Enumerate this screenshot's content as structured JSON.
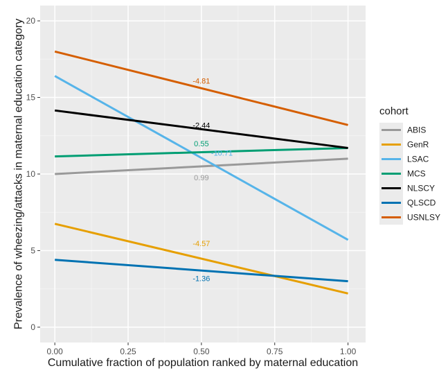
{
  "chart_data": {
    "type": "line",
    "xlabel": "Cumulative fraction of population ranked by maternal education",
    "ylabel": "Prevalence of wheezing/attacks in maternal education category",
    "xlim": [
      -0.05,
      1.06
    ],
    "ylim": [
      -1,
      21
    ],
    "x_ticks": [
      0,
      0.25,
      0.5,
      0.75,
      1
    ],
    "x_tick_labels": [
      "0.00",
      "0.25",
      "0.50",
      "0.75",
      "1.00"
    ],
    "y_ticks": [
      0,
      5,
      10,
      15,
      20
    ],
    "y_tick_labels": [
      "0",
      "5",
      "10",
      "15",
      "20"
    ],
    "grid": true,
    "legend_title": "cohort",
    "legend_position": "right",
    "series": [
      {
        "name": "ABIS",
        "color": "#999999",
        "x": [
          0,
          1
        ],
        "y": [
          10.0,
          11.0
        ],
        "label": "0.99",
        "label_pos": [
          0.5,
          9.6
        ]
      },
      {
        "name": "GenR",
        "color": "#E69F00",
        "x": [
          0,
          1
        ],
        "y": [
          6.75,
          2.2
        ],
        "label": "-4.57",
        "label_pos": [
          0.5,
          5.3
        ]
      },
      {
        "name": "LSAC",
        "color": "#56B4E9",
        "x": [
          0,
          1
        ],
        "y": [
          16.4,
          5.7
        ],
        "label": "-10.71",
        "label_pos": [
          0.57,
          11.2
        ]
      },
      {
        "name": "MCS",
        "color": "#009E73",
        "x": [
          0,
          1
        ],
        "y": [
          11.15,
          11.7
        ],
        "label": "0.55",
        "label_pos": [
          0.5,
          11.8
        ]
      },
      {
        "name": "NLSCY",
        "color": "#000000",
        "x": [
          0,
          1
        ],
        "y": [
          14.15,
          11.7
        ],
        "label": "-2.44",
        "label_pos": [
          0.5,
          13.0
        ]
      },
      {
        "name": "QLSCD",
        "color": "#0072B2",
        "x": [
          0,
          1
        ],
        "y": [
          4.4,
          3.0
        ],
        "label": "-1.36",
        "label_pos": [
          0.5,
          3.0
        ]
      },
      {
        "name": "USNLSY",
        "color": "#D55E00",
        "x": [
          0,
          1
        ],
        "y": [
          18.0,
          13.2
        ],
        "label": "-4.81",
        "label_pos": [
          0.5,
          15.9
        ]
      }
    ]
  }
}
